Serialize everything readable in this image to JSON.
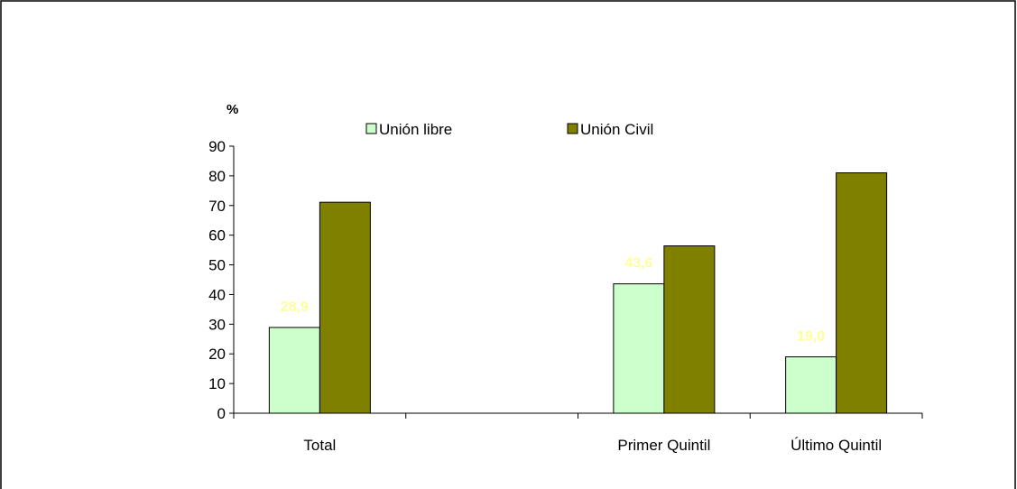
{
  "chart_data": {
    "type": "bar",
    "title": "",
    "xlabel": "",
    "ylabel": "%",
    "ylim": [
      0,
      90
    ],
    "yticks": [
      0,
      10,
      20,
      30,
      40,
      50,
      60,
      70,
      80,
      90
    ],
    "grid": false,
    "legend_position": "top",
    "categories": [
      "Total",
      "",
      "Primer Quintil",
      "Último Quintil"
    ],
    "series": [
      {
        "name": "Unión libre",
        "color": "#ccffcc",
        "values": [
          28.9,
          null,
          43.6,
          19.0
        ],
        "data_labels": [
          "28,9",
          "",
          "43,6",
          "19,0"
        ],
        "data_label_color": "#ffff99"
      },
      {
        "name": "Unión Civil",
        "color": "#808000",
        "values": [
          71.1,
          null,
          56.4,
          81.0
        ],
        "data_labels": [
          "",
          "",
          "",
          ""
        ],
        "data_label_color": "#ffff99"
      }
    ]
  }
}
